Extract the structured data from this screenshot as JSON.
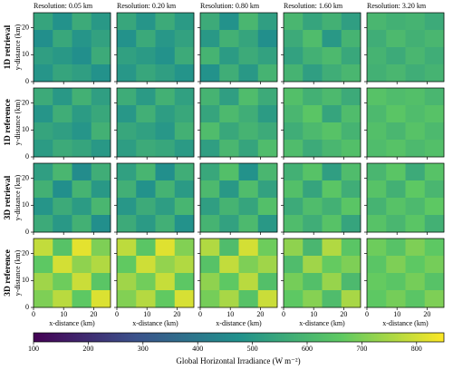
{
  "chart_data": {
    "type": "heatmap-grid",
    "columns": [
      "Resolution: 0.05 km",
      "Resolution: 0.20 km",
      "Resolution: 0.80 km",
      "Resolution: 1.60 km",
      "Resolution: 3.20 km"
    ],
    "rows": [
      "1D retrieval",
      "1D reference",
      "3D retrieval",
      "3D reference"
    ],
    "ylabel": "y-distance (km)",
    "xlabel": "x-distance (km)",
    "xlim": [
      0,
      25.6
    ],
    "ylim": [
      0,
      25.6
    ],
    "xticks": [
      0,
      10,
      20
    ],
    "yticks": [
      0,
      10,
      20
    ],
    "panels": [
      [
        [
          [
            540,
            480,
            560,
            500
          ],
          [
            470,
            550,
            490,
            530
          ],
          [
            520,
            500,
            470,
            560
          ],
          [
            490,
            540,
            520,
            480
          ]
        ],
        [
          [
            545,
            490,
            560,
            505
          ],
          [
            480,
            555,
            495,
            530
          ],
          [
            525,
            505,
            480,
            560
          ],
          [
            495,
            545,
            520,
            485
          ]
        ],
        [
          [
            560,
            480,
            600,
            520
          ],
          [
            500,
            580,
            540,
            470
          ],
          [
            590,
            510,
            560,
            530
          ],
          [
            480,
            570,
            500,
            590
          ]
        ],
        [
          [
            600,
            540,
            580,
            520
          ],
          [
            560,
            620,
            500,
            590
          ],
          [
            530,
            580,
            610,
            550
          ],
          [
            590,
            520,
            570,
            600
          ]
        ],
        [
          [
            600,
            580,
            590,
            560
          ],
          [
            570,
            610,
            580,
            600
          ],
          [
            590,
            560,
            600,
            570
          ],
          [
            580,
            600,
            570,
            590
          ]
        ]
      ],
      [
        [
          [
            560,
            500,
            580,
            520
          ],
          [
            490,
            570,
            510,
            550
          ],
          [
            540,
            520,
            490,
            580
          ],
          [
            510,
            560,
            540,
            500
          ]
        ],
        [
          [
            565,
            505,
            580,
            525
          ],
          [
            495,
            575,
            515,
            550
          ],
          [
            545,
            525,
            495,
            580
          ],
          [
            515,
            560,
            545,
            505
          ]
        ],
        [
          [
            590,
            520,
            620,
            560
          ],
          [
            540,
            610,
            570,
            510
          ],
          [
            620,
            550,
            590,
            560
          ],
          [
            520,
            600,
            540,
            620
          ]
        ],
        [
          [
            630,
            580,
            610,
            560
          ],
          [
            600,
            650,
            540,
            620
          ],
          [
            570,
            610,
            640,
            590
          ],
          [
            620,
            560,
            600,
            630
          ]
        ],
        [
          [
            640,
            620,
            630,
            600
          ],
          [
            610,
            650,
            620,
            640
          ],
          [
            630,
            600,
            640,
            610
          ],
          [
            620,
            640,
            610,
            630
          ]
        ]
      ],
      [
        [
          [
            520,
            600,
            460,
            570
          ],
          [
            580,
            470,
            590,
            500
          ],
          [
            490,
            560,
            510,
            600
          ],
          [
            560,
            500,
            580,
            470
          ]
        ],
        [
          [
            525,
            595,
            470,
            570
          ],
          [
            575,
            480,
            585,
            505
          ],
          [
            495,
            560,
            515,
            595
          ],
          [
            560,
            505,
            575,
            480
          ]
        ],
        [
          [
            550,
            630,
            480,
            600
          ],
          [
            610,
            500,
            620,
            530
          ],
          [
            520,
            590,
            540,
            630
          ],
          [
            590,
            530,
            610,
            500
          ]
        ],
        [
          [
            580,
            640,
            520,
            620
          ],
          [
            630,
            540,
            650,
            570
          ],
          [
            560,
            620,
            580,
            650
          ],
          [
            620,
            570,
            640,
            540
          ]
        ],
        [
          [
            600,
            650,
            560,
            640
          ],
          [
            640,
            580,
            660,
            600
          ],
          [
            590,
            640,
            610,
            660
          ],
          [
            640,
            600,
            650,
            580
          ]
        ]
      ],
      [
        [
          [
            780,
            640,
            820,
            700
          ],
          [
            660,
            800,
            720,
            760
          ],
          [
            740,
            680,
            790,
            650
          ],
          [
            700,
            770,
            660,
            810
          ]
        ],
        [
          [
            775,
            650,
            815,
            705
          ],
          [
            665,
            795,
            725,
            760
          ],
          [
            740,
            685,
            785,
            655
          ],
          [
            705,
            765,
            665,
            805
          ]
        ],
        [
          [
            760,
            620,
            800,
            680
          ],
          [
            640,
            780,
            700,
            740
          ],
          [
            720,
            660,
            770,
            630
          ],
          [
            690,
            750,
            640,
            790
          ]
        ],
        [
          [
            720,
            600,
            760,
            650
          ],
          [
            620,
            740,
            670,
            700
          ],
          [
            690,
            630,
            730,
            610
          ],
          [
            660,
            710,
            620,
            750
          ]
        ],
        [
          [
            680,
            640,
            700,
            660
          ],
          [
            650,
            700,
            660,
            690
          ],
          [
            670,
            650,
            690,
            640
          ],
          [
            660,
            690,
            650,
            700
          ]
        ]
      ]
    ],
    "colorbar": {
      "label": "Global Horizontal Irradiance (W m⁻²)",
      "lim": [
        100,
        850
      ],
      "ticks": [
        100,
        200,
        300,
        400,
        500,
        600,
        700,
        800
      ]
    }
  }
}
